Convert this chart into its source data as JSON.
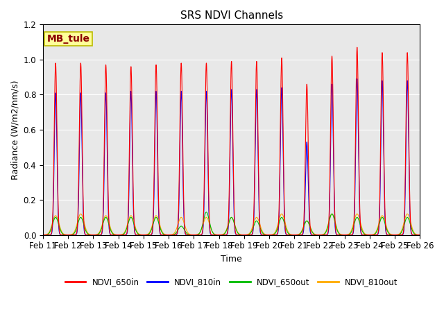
{
  "title": "SRS NDVI Channels",
  "xlabel": "Time",
  "ylabel": "Radiance (W/m2/nm/s)",
  "ylim": [
    0.0,
    1.2
  ],
  "annotation": "MB_tule",
  "colors": {
    "NDVI_650in": "#ff0000",
    "NDVI_810in": "#0000ff",
    "NDVI_650out": "#00bb00",
    "NDVI_810out": "#ffaa00"
  },
  "bg_color": "#e8e8e8",
  "xtick_labels": [
    "Feb 11",
    "Feb 12",
    "Feb 13",
    "Feb 14",
    "Feb 15",
    "Feb 16",
    "Feb 17",
    "Feb 18",
    "Feb 19",
    "Feb 20",
    "Feb 21",
    "Feb 22",
    "Feb 23",
    "Feb 24",
    "Feb 25",
    "Feb 26"
  ],
  "peak_650in": [
    0.98,
    0.98,
    0.97,
    0.96,
    0.97,
    0.98,
    0.98,
    0.99,
    0.99,
    1.01,
    0.86,
    1.02,
    1.07,
    1.04,
    1.04
  ],
  "peak_810in": [
    0.81,
    0.81,
    0.81,
    0.82,
    0.82,
    0.82,
    0.82,
    0.83,
    0.83,
    0.84,
    0.53,
    0.86,
    0.89,
    0.88,
    0.88
  ],
  "peak_650out": [
    0.1,
    0.1,
    0.1,
    0.1,
    0.1,
    0.05,
    0.13,
    0.1,
    0.08,
    0.1,
    0.08,
    0.12,
    0.1,
    0.1,
    0.1
  ],
  "peak_810out": [
    0.11,
    0.12,
    0.11,
    0.11,
    0.11,
    0.1,
    0.1,
    0.1,
    0.1,
    0.12,
    0.08,
    0.12,
    0.12,
    0.11,
    0.12
  ],
  "figsize": [
    6.4,
    4.8
  ],
  "dpi": 100
}
